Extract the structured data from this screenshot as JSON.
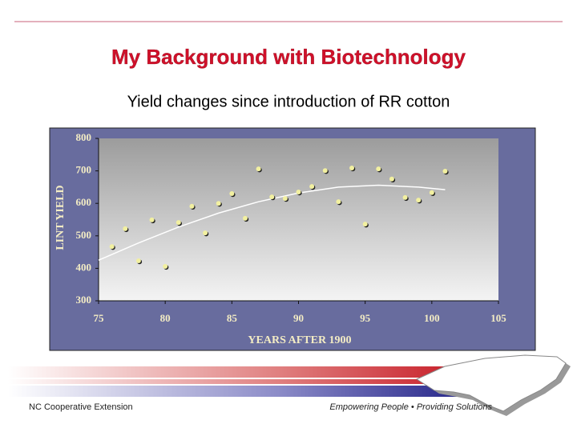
{
  "chart_data": {
    "type": "scatter",
    "title": "My Background with Biotechnology",
    "subtitle": "Yield changes since introduction of RR cotton",
    "x_label": "YEARS AFTER 1900",
    "y_label": "LINT YIELD",
    "x": [
      76,
      77,
      78,
      79,
      80,
      81,
      82,
      83,
      84,
      85,
      86,
      87,
      88,
      89,
      90,
      91,
      92,
      93,
      94,
      95,
      96,
      97,
      98,
      99,
      100,
      101
    ],
    "values": [
      467,
      522,
      423,
      549,
      406,
      541,
      591,
      509,
      600,
      630,
      554,
      706,
      620,
      615,
      635,
      652,
      701,
      605,
      709,
      536,
      706,
      675,
      618,
      610,
      633,
      699
    ],
    "color": "#f2f0a0",
    "trend": {
      "x": [
        75,
        78,
        81,
        84,
        87,
        90,
        93,
        96,
        99,
        101
      ],
      "values": [
        425,
        478,
        527,
        570,
        605,
        632,
        650,
        656,
        650,
        642
      ],
      "color": "#ffffff"
    },
    "xlim": [
      75,
      105
    ],
    "xticks": [
      75,
      80,
      85,
      90,
      95,
      100,
      105
    ],
    "ylim": [
      300,
      800
    ],
    "yticks": [
      300,
      400,
      500,
      600,
      700,
      800
    ]
  },
  "footer": {
    "left": "NC Cooperative Extension",
    "right": "Empowering People • Providing Solutions"
  }
}
